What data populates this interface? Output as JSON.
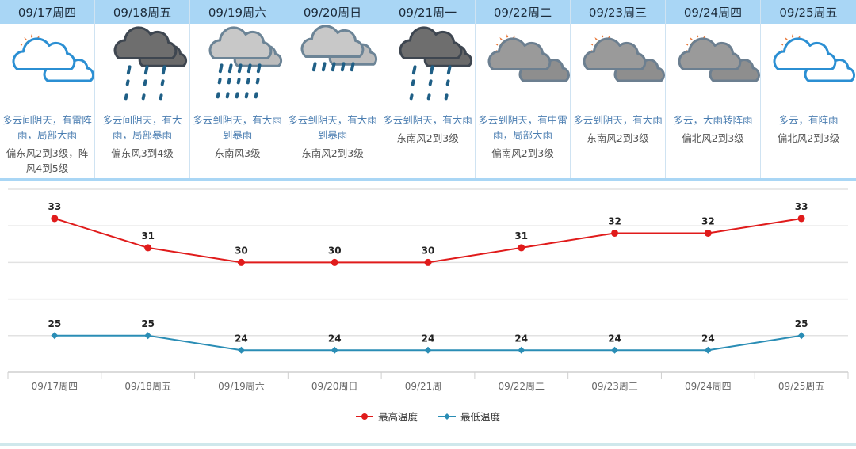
{
  "forecast": {
    "days": [
      {
        "date": "09/17周四",
        "icon": "partly-cloudy-icon",
        "desc": "多云间阴天，有雷阵雨，局部大雨",
        "wind": "偏东风2到3级，阵风4到5级"
      },
      {
        "date": "09/18周五",
        "icon": "heavy-rain-icon",
        "desc": "多云间阴天，有大雨，局部暴雨",
        "wind": "偏东风3到4级"
      },
      {
        "date": "09/19周六",
        "icon": "rainstorm-icon",
        "desc": "多云到阴天，有大雨到暴雨",
        "wind": "东南风3级"
      },
      {
        "date": "09/20周日",
        "icon": "moderate-rain-icon",
        "desc": "多云到阴天，有大雨到暴雨",
        "wind": "东南风2到3级"
      },
      {
        "date": "09/21周一",
        "icon": "heavy-rain-icon",
        "desc": "多云到阴天，有大雨",
        "wind": "东南风2到3级"
      },
      {
        "date": "09/22周二",
        "icon": "cloudy-sun-icon",
        "desc": "多云到阴天，有中雷雨，局部大雨",
        "wind": "偏南风2到3级"
      },
      {
        "date": "09/23周三",
        "icon": "cloudy-sun-icon",
        "desc": "多云到阴天，有大雨",
        "wind": "东南风2到3级"
      },
      {
        "date": "09/24周四",
        "icon": "cloudy-sun-icon",
        "desc": "多云，大雨转阵雨",
        "wind": "偏北风2到3级"
      },
      {
        "date": "09/25周五",
        "icon": "partly-cloudy-icon",
        "desc": "多云，有阵雨",
        "wind": "偏北风2到3级"
      }
    ]
  },
  "colors": {
    "header_bg": "#a9d6f5",
    "high": "#e01b1b",
    "low": "#2a8db5",
    "desc_text": "#4b7eb1"
  },
  "legend": {
    "high_label": "最高温度",
    "low_label": "最低温度"
  },
  "chart_data": {
    "type": "line",
    "title": "",
    "xlabel": "",
    "ylabel": "",
    "categories": [
      "09/17周四",
      "09/18周五",
      "09/19周六",
      "09/20周日",
      "09/21周一",
      "09/22周二",
      "09/23周三",
      "09/24周四",
      "09/25周五"
    ],
    "series": [
      {
        "name": "最高温度",
        "color": "#e01b1b",
        "marker": "circle",
        "values": [
          33,
          31,
          30,
          30,
          30,
          31,
          32,
          32,
          33
        ]
      },
      {
        "name": "最低温度",
        "color": "#2a8db5",
        "marker": "diamond",
        "values": [
          25,
          25,
          24,
          24,
          24,
          24,
          24,
          24,
          25
        ]
      }
    ],
    "ylim": [
      22.5,
      35
    ],
    "grid": true,
    "legend_position": "bottom",
    "data_labels": true
  }
}
